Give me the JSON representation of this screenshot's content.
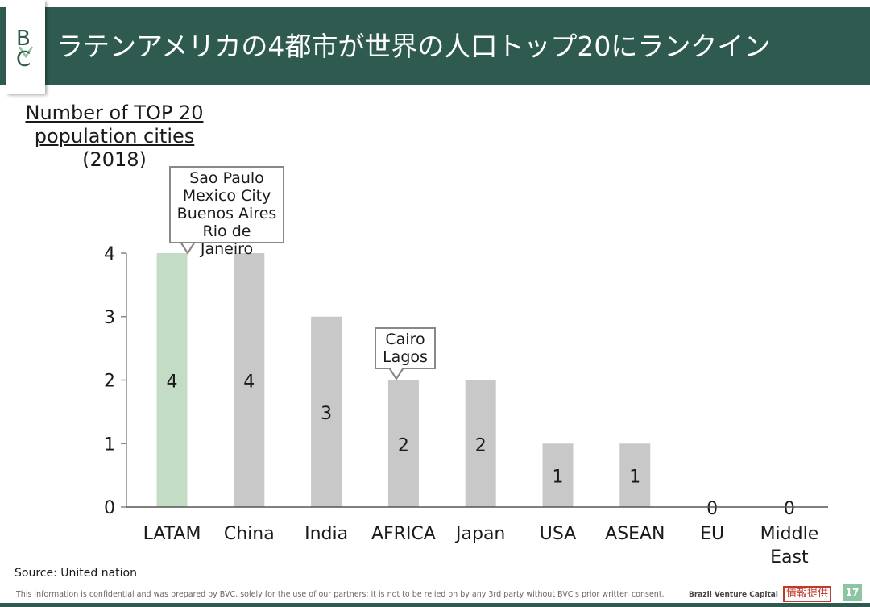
{
  "header": {
    "title": "ラテンアメリカの4都市が世界の人口トップ20にランクイン",
    "logo_letters": "BC",
    "background_color": "#2e5a50"
  },
  "axis_title": {
    "line1": "Number of TOP 20",
    "line2": "population cities",
    "line3": "(2018)"
  },
  "callouts": {
    "latam": [
      "Sao Paulo",
      "Mexico City",
      "Buenos Aires",
      "Rio de Janeiro"
    ],
    "africa": [
      "Cairo",
      "Lagos"
    ]
  },
  "chart_data": {
    "type": "bar",
    "title": "Number of TOP 20 population cities (2018)",
    "categories": [
      "LATAM",
      "China",
      "India",
      "AFRICA",
      "Japan",
      "USA",
      "ASEAN",
      "EU",
      "Middle East"
    ],
    "values": [
      4,
      4,
      3,
      2,
      2,
      1,
      1,
      0,
      0
    ],
    "ylim": [
      0,
      4
    ],
    "yticks": [
      0,
      1,
      2,
      3,
      4
    ],
    "highlight_index": 0,
    "bar_color": "#c8c8c8",
    "highlight_color": "#c3dcc6",
    "grid": false
  },
  "footer": {
    "source": "Source: United nation",
    "disclaimer": "This information is confidential and was prepared by BVC, solely for the use of our partners; it is not to be relied on by any 3rd party without BVC's prior written consent.",
    "brand": "Brazil Venture Capital",
    "stamp": "情報提供",
    "page_number": "17"
  }
}
